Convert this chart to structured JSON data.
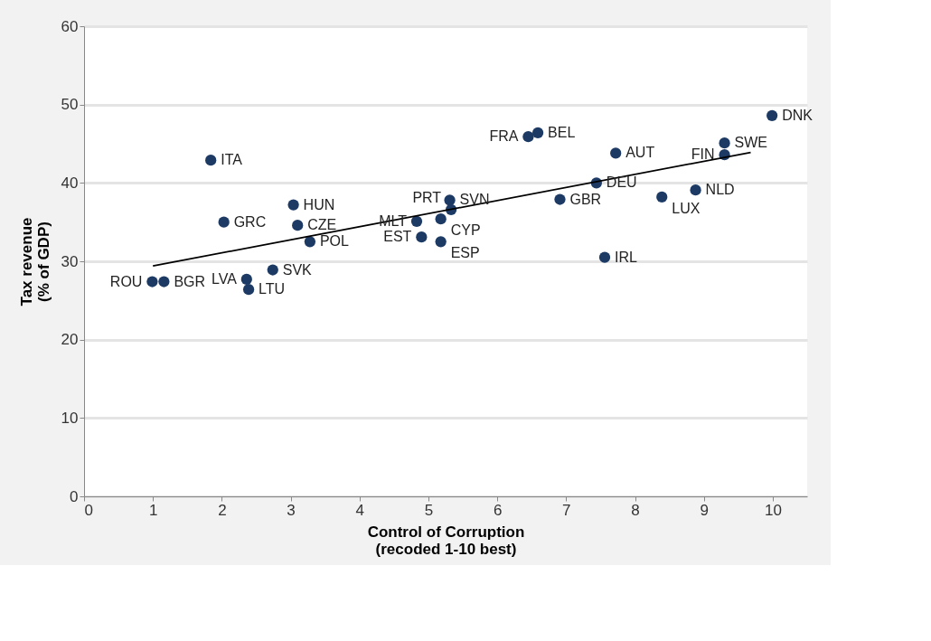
{
  "chart_data": {
    "type": "scatter",
    "xlabel": "Control of Corruption\n(recoded 1-10 best)",
    "ylabel": "Tax revenue\n(% of GDP)",
    "xlim": [
      0,
      10.5
    ],
    "xticks": [
      0,
      1,
      2,
      3,
      4,
      5,
      6,
      7,
      8,
      9,
      10
    ],
    "ylim": [
      0,
      60
    ],
    "yticks": [
      0,
      10,
      20,
      30,
      40,
      50,
      60
    ],
    "grid": "y",
    "series": [
      {
        "marker": "circle",
        "color": "#1c3a64",
        "x": [
          1.84,
          3.04,
          2.03,
          3.1,
          3.28,
          2.74,
          2.36,
          2.39,
          0.99,
          1.16,
          4.83,
          4.9,
          5.18,
          5.18,
          5.31,
          5.33,
          6.45,
          6.59,
          6.91,
          7.44,
          7.72,
          7.56,
          8.39,
          8.88,
          9.3,
          9.3,
          9.99
        ],
        "values": [
          42.9,
          37.2,
          35.0,
          34.6,
          32.5,
          28.9,
          27.7,
          26.4,
          27.4,
          27.4,
          35.1,
          33.1,
          35.4,
          32.5,
          37.8,
          36.6,
          45.9,
          46.4,
          37.9,
          40.0,
          43.8,
          30.5,
          38.2,
          39.1,
          45.1,
          43.6,
          48.6
        ]
      },
      {
        "type": "line",
        "color": "#000000",
        "x": [
          1.0,
          9.68
        ],
        "values": [
          29.4,
          43.9
        ]
      }
    ],
    "annotations": [
      {
        "text": "ITA",
        "x": 1.84,
        "y": 42.9
      },
      {
        "text": "HUN",
        "x": 3.04,
        "y": 37.2
      },
      {
        "text": "GRC",
        "x": 2.03,
        "y": 35.0
      },
      {
        "text": "CZE",
        "x": 3.1,
        "y": 34.6
      },
      {
        "text": "POL",
        "x": 3.28,
        "y": 32.5
      },
      {
        "text": "SVK",
        "x": 2.74,
        "y": 28.9
      },
      {
        "text": "LVA",
        "x": 2.36,
        "y": 27.7
      },
      {
        "text": "LTU",
        "x": 2.39,
        "y": 26.4
      },
      {
        "text": "ROU",
        "x": 0.99,
        "y": 27.4
      },
      {
        "text": "BGR",
        "x": 1.16,
        "y": 27.4
      },
      {
        "text": "MLT",
        "x": 4.83,
        "y": 35.1
      },
      {
        "text": "EST",
        "x": 4.9,
        "y": 33.1
      },
      {
        "text": "CYP",
        "x": 5.18,
        "y": 35.4
      },
      {
        "text": "ESP",
        "x": 5.18,
        "y": 32.5
      },
      {
        "text": "SVN",
        "x": 5.31,
        "y": 37.8
      },
      {
        "text": "PRT",
        "x": 5.33,
        "y": 36.6
      },
      {
        "text": "FRA",
        "x": 6.45,
        "y": 45.9
      },
      {
        "text": "BEL",
        "x": 6.59,
        "y": 46.4
      },
      {
        "text": "GBR",
        "x": 6.91,
        "y": 37.9
      },
      {
        "text": "DEU",
        "x": 7.44,
        "y": 40.0
      },
      {
        "text": "AUT",
        "x": 7.72,
        "y": 43.8
      },
      {
        "text": "IRL",
        "x": 7.56,
        "y": 30.5
      },
      {
        "text": "LUX",
        "x": 8.39,
        "y": 38.2
      },
      {
        "text": "NLD",
        "x": 8.88,
        "y": 39.1
      },
      {
        "text": "SWE",
        "x": 9.3,
        "y": 45.1
      },
      {
        "text": "FIN",
        "x": 9.3,
        "y": 43.6
      },
      {
        "text": "DNK",
        "x": 9.99,
        "y": 48.6
      }
    ]
  }
}
